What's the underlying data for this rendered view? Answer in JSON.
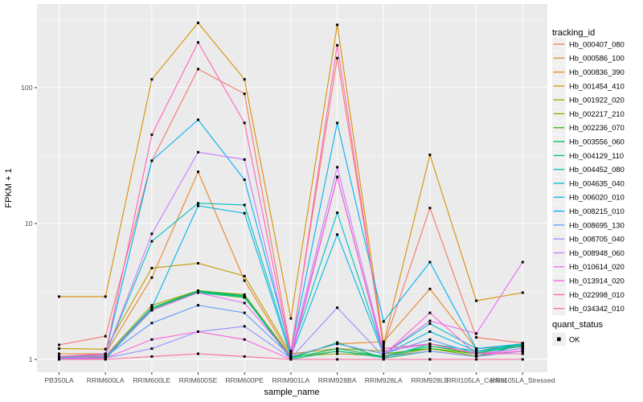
{
  "figure": {
    "background": "#FFFFFF",
    "panel_color": "#EBEBEB",
    "grid_color": "#FFFFFF",
    "tick_label_color": "#4D4D4D",
    "legend_key_color": "#F0F0F0",
    "legend_tracking_title": "tracking_id",
    "legend_quant_title": "quant_status",
    "quant_item_label": "OK",
    "quant_item_glyph": "black-square-point"
  },
  "chart_data": {
    "type": "line",
    "title": "",
    "xlabel": "sample_name",
    "ylabel": "FPKM + 1",
    "y_scale": "log10",
    "y_ticks": [
      1,
      10,
      100
    ],
    "y_minor_gridlines": [
      3.162,
      31.62,
      316.2
    ],
    "y_range_approx": [
      0.85,
      420
    ],
    "grid": "white major and minor gridlines on gray panel",
    "legend_position": "right",
    "point_marker": "small black square (quant_status OK)",
    "categories": [
      "PB350LA",
      "RRIM600LA",
      "RRIM600LE",
      "RRIM600SE",
      "RRIM600PE",
      "RRIM901LA",
      "RRIM928BA",
      "RRIM928LA",
      "RRIM928LE",
      "RRII105LA_Control",
      "RRII105LA_Stressed"
    ],
    "series": [
      {
        "name": "Hb_000407_080",
        "color": "#F8766D",
        "values": [
          1.28,
          1.48,
          29,
          137,
          90,
          1.15,
          165,
          1.25,
          13,
          1.45,
          1.32
        ]
      },
      {
        "name": "Hb_000586_100",
        "color": "#E88526",
        "values": [
          1.1,
          1.1,
          4.0,
          24,
          3.8,
          1.05,
          1.3,
          1.35,
          3.3,
          1.2,
          1.25
        ]
      },
      {
        "name": "Hb_000836_390",
        "color": "#D89000",
        "values": [
          2.9,
          2.9,
          115,
          300,
          115,
          2.0,
          290,
          1.3,
          32,
          2.7,
          3.1
        ]
      },
      {
        "name": "Hb_001454_410",
        "color": "#C09B00",
        "values": [
          1.2,
          1.19,
          4.7,
          5.1,
          4.1,
          1.1,
          1.2,
          1.15,
          1.3,
          1.15,
          1.24
        ]
      },
      {
        "name": "Hb_001922_020",
        "color": "#A3A500",
        "values": [
          1.05,
          1.06,
          2.5,
          3.2,
          3.0,
          1.05,
          1.1,
          1.06,
          1.25,
          1.1,
          1.2
        ]
      },
      {
        "name": "Hb_002217_210",
        "color": "#7CAE00",
        "values": [
          1.03,
          1.05,
          2.4,
          3.15,
          2.9,
          1.03,
          1.15,
          1.05,
          1.2,
          1.06,
          1.15
        ]
      },
      {
        "name": "Hb_002236_070",
        "color": "#39B600",
        "values": [
          1.0,
          1.02,
          2.3,
          3.1,
          2.85,
          1.05,
          22,
          1.1,
          1.2,
          1.1,
          1.3
        ]
      },
      {
        "name": "Hb_003556_060",
        "color": "#00BB4E",
        "values": [
          1.0,
          1.0,
          2.4,
          3.2,
          2.95,
          1.02,
          1.33,
          1.02,
          1.15,
          1.05,
          1.28
        ]
      },
      {
        "name": "Hb_004129_110",
        "color": "#00BF7D",
        "values": [
          1.02,
          1.03,
          2.35,
          3.15,
          2.92,
          1.02,
          1.2,
          1.05,
          1.25,
          1.12,
          1.25
        ]
      },
      {
        "name": "Hb_004452_080",
        "color": "#00C1A7",
        "values": [
          1.0,
          1.02,
          2.3,
          3.1,
          2.9,
          1.0,
          1.15,
          1.03,
          1.3,
          1.15,
          1.3
        ]
      },
      {
        "name": "Hb_004635_040",
        "color": "#00BFC4",
        "values": [
          1.05,
          1.08,
          7.4,
          14.1,
          13.7,
          1.1,
          12,
          1.1,
          1.83,
          1.2,
          1.3
        ]
      },
      {
        "name": "Hb_006020_010",
        "color": "#00B8E5",
        "values": [
          1.03,
          1.05,
          2.4,
          13.5,
          11.9,
          1.05,
          8.3,
          1.08,
          1.6,
          1.15,
          1.25
        ]
      },
      {
        "name": "Hb_008215_010",
        "color": "#00B0F6",
        "values": [
          1.05,
          1.1,
          29,
          58,
          21,
          1.15,
          55,
          1.9,
          5.2,
          1.2,
          1.3
        ]
      },
      {
        "name": "Hb_008695_130",
        "color": "#619CFF",
        "values": [
          1.0,
          1.05,
          1.85,
          2.5,
          2.2,
          1.05,
          1.3,
          1.1,
          1.4,
          1.1,
          1.2
        ]
      },
      {
        "name": "Hb_008705_040",
        "color": "#9590FF",
        "values": [
          1.0,
          1.02,
          1.2,
          1.6,
          1.75,
          1.02,
          2.4,
          1.05,
          1.15,
          1.05,
          1.15
        ]
      },
      {
        "name": "Hb_008948_060",
        "color": "#C77CFF",
        "values": [
          1.05,
          1.08,
          8.4,
          33.5,
          29.6,
          1.1,
          26,
          1.15,
          1.3,
          1.1,
          1.2
        ]
      },
      {
        "name": "Hb_010614_020",
        "color": "#E76BF3",
        "values": [
          1.02,
          1.05,
          2.3,
          3.1,
          2.6,
          1.05,
          22,
          1.1,
          1.92,
          1.55,
          5.2
        ]
      },
      {
        "name": "Hb_013914_020",
        "color": "#FA62DB",
        "values": [
          1.0,
          1.02,
          1.4,
          1.6,
          1.4,
          1.0,
          22,
          1.08,
          2.2,
          1.1,
          1.15
        ]
      },
      {
        "name": "Hb_022998_010",
        "color": "#FF62BC",
        "values": [
          1.05,
          1.1,
          45,
          215,
          55,
          1.1,
          205,
          1.2,
          1.3,
          1.1,
          1.1
        ]
      },
      {
        "name": "Hb_034342_010",
        "color": "#FF6A98",
        "values": [
          1.0,
          1.0,
          1.05,
          1.1,
          1.05,
          1.0,
          1.0,
          1.0,
          1.0,
          1.0,
          1.0
        ]
      }
    ],
    "quant_status_all_points": "OK"
  }
}
